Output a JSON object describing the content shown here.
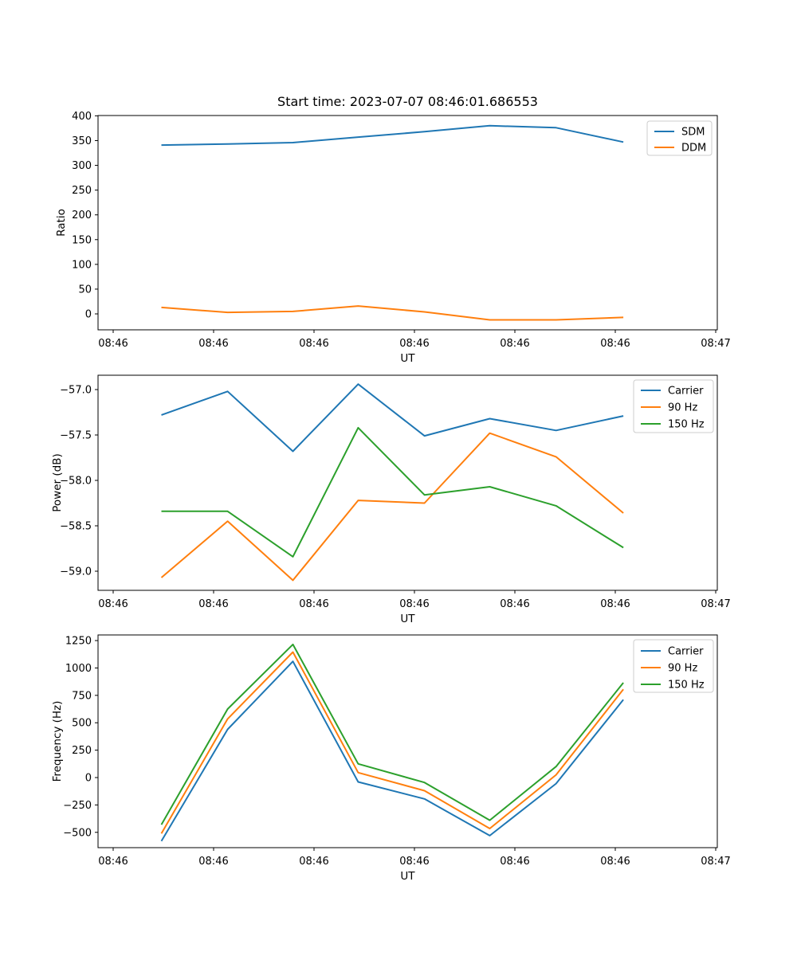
{
  "figure": {
    "title": "Start time: 2023-07-07 08:46:01.686553",
    "x_axis_label": "UT",
    "x_axis_start_label": "08:46",
    "x_axis_end_label": "08:47"
  },
  "colors": {
    "carrier_blue": "#1f77b4",
    "orange": "#ff7f0e",
    "green": "#2ca02c",
    "spine": "#000000",
    "legend_border": "#cccccc"
  },
  "chart_data": [
    {
      "type": "line",
      "name": "ratio",
      "ylabel": "Ratio",
      "xlabel": "UT",
      "x_seconds": [
        4.8,
        11.4,
        17.9,
        24.4,
        31.0,
        37.5,
        44.1,
        50.8
      ],
      "x_tick_seconds": [
        0,
        10,
        20,
        30,
        40,
        50,
        60
      ],
      "x_tick_labels": [
        "08:46",
        "08:46",
        "08:46",
        "08:46",
        "08:46",
        "08:46",
        "08:47"
      ],
      "y_ticks": [
        0,
        50,
        100,
        150,
        200,
        250,
        300,
        350,
        400
      ],
      "y_tick_labels": [
        "0",
        "50",
        "100",
        "150",
        "200",
        "250",
        "300",
        "350",
        "400"
      ],
      "ylim": [
        -32,
        400.5
      ],
      "grid": false,
      "legend_position": "upper right",
      "series": [
        {
          "name": "SDM",
          "color": "#1f77b4",
          "values": [
            341,
            343,
            346,
            357,
            368,
            380,
            376,
            347
          ]
        },
        {
          "name": "DDM",
          "color": "#ff7f0e",
          "values": [
            13,
            3,
            5,
            16,
            4,
            -12,
            -12,
            -7
          ]
        }
      ]
    },
    {
      "type": "line",
      "name": "power",
      "ylabel": "Power (dB)",
      "xlabel": "UT",
      "x_seconds": [
        4.8,
        11.4,
        17.9,
        24.4,
        31.0,
        37.5,
        44.1,
        50.8
      ],
      "x_tick_seconds": [
        0,
        10,
        20,
        30,
        40,
        50,
        60
      ],
      "x_tick_labels": [
        "08:46",
        "08:46",
        "08:46",
        "08:46",
        "08:46",
        "08:46",
        "08:47"
      ],
      "y_ticks": [
        -57.0,
        -57.5,
        -58.0,
        -58.5,
        -59.0
      ],
      "y_tick_labels": [
        "−57.0",
        "−57.5",
        "−58.0",
        "−58.5",
        "−59.0"
      ],
      "ylim": [
        -59.21,
        -56.84
      ],
      "grid": false,
      "legend_position": "upper right",
      "series": [
        {
          "name": "Carrier",
          "color": "#1f77b4",
          "values": [
            -57.28,
            -57.02,
            -57.68,
            -56.94,
            -57.51,
            -57.32,
            -57.45,
            -57.29
          ]
        },
        {
          "name": "90 Hz",
          "color": "#ff7f0e",
          "values": [
            -59.07,
            -58.45,
            -59.1,
            -58.22,
            -58.25,
            -57.48,
            -57.74,
            -58.36
          ]
        },
        {
          "name": "150 Hz",
          "color": "#2ca02c",
          "values": [
            -58.34,
            -58.34,
            -58.84,
            -57.42,
            -58.16,
            -58.07,
            -58.28,
            -58.74
          ]
        }
      ]
    },
    {
      "type": "line",
      "name": "frequency",
      "ylabel": "Frequency (Hz)",
      "xlabel": "UT",
      "x_seconds": [
        4.8,
        11.4,
        17.9,
        24.4,
        31.0,
        37.5,
        44.1,
        50.8
      ],
      "x_tick_seconds": [
        0,
        10,
        20,
        30,
        40,
        50,
        60
      ],
      "x_tick_labels": [
        "08:46",
        "08:46",
        "08:46",
        "08:46",
        "08:46",
        "08:46",
        "08:47"
      ],
      "y_ticks": [
        1250,
        1000,
        750,
        500,
        250,
        0,
        -250,
        -500
      ],
      "y_tick_labels": [
        "1250",
        "1000",
        "750",
        "500",
        "250",
        "0",
        "−250",
        "−500"
      ],
      "ylim": [
        -640,
        1301
      ],
      "grid": false,
      "legend_position": "upper right",
      "series": [
        {
          "name": "Carrier",
          "color": "#1f77b4",
          "values": [
            -580,
            440,
            1060,
            -40,
            -195,
            -530,
            -55,
            710
          ]
        },
        {
          "name": "90 Hz",
          "color": "#ff7f0e",
          "values": [
            -510,
            535,
            1145,
            45,
            -120,
            -465,
            25,
            805
          ]
        },
        {
          "name": "150 Hz",
          "color": "#2ca02c",
          "values": [
            -430,
            625,
            1215,
            125,
            -45,
            -390,
            100,
            865
          ]
        }
      ]
    }
  ]
}
